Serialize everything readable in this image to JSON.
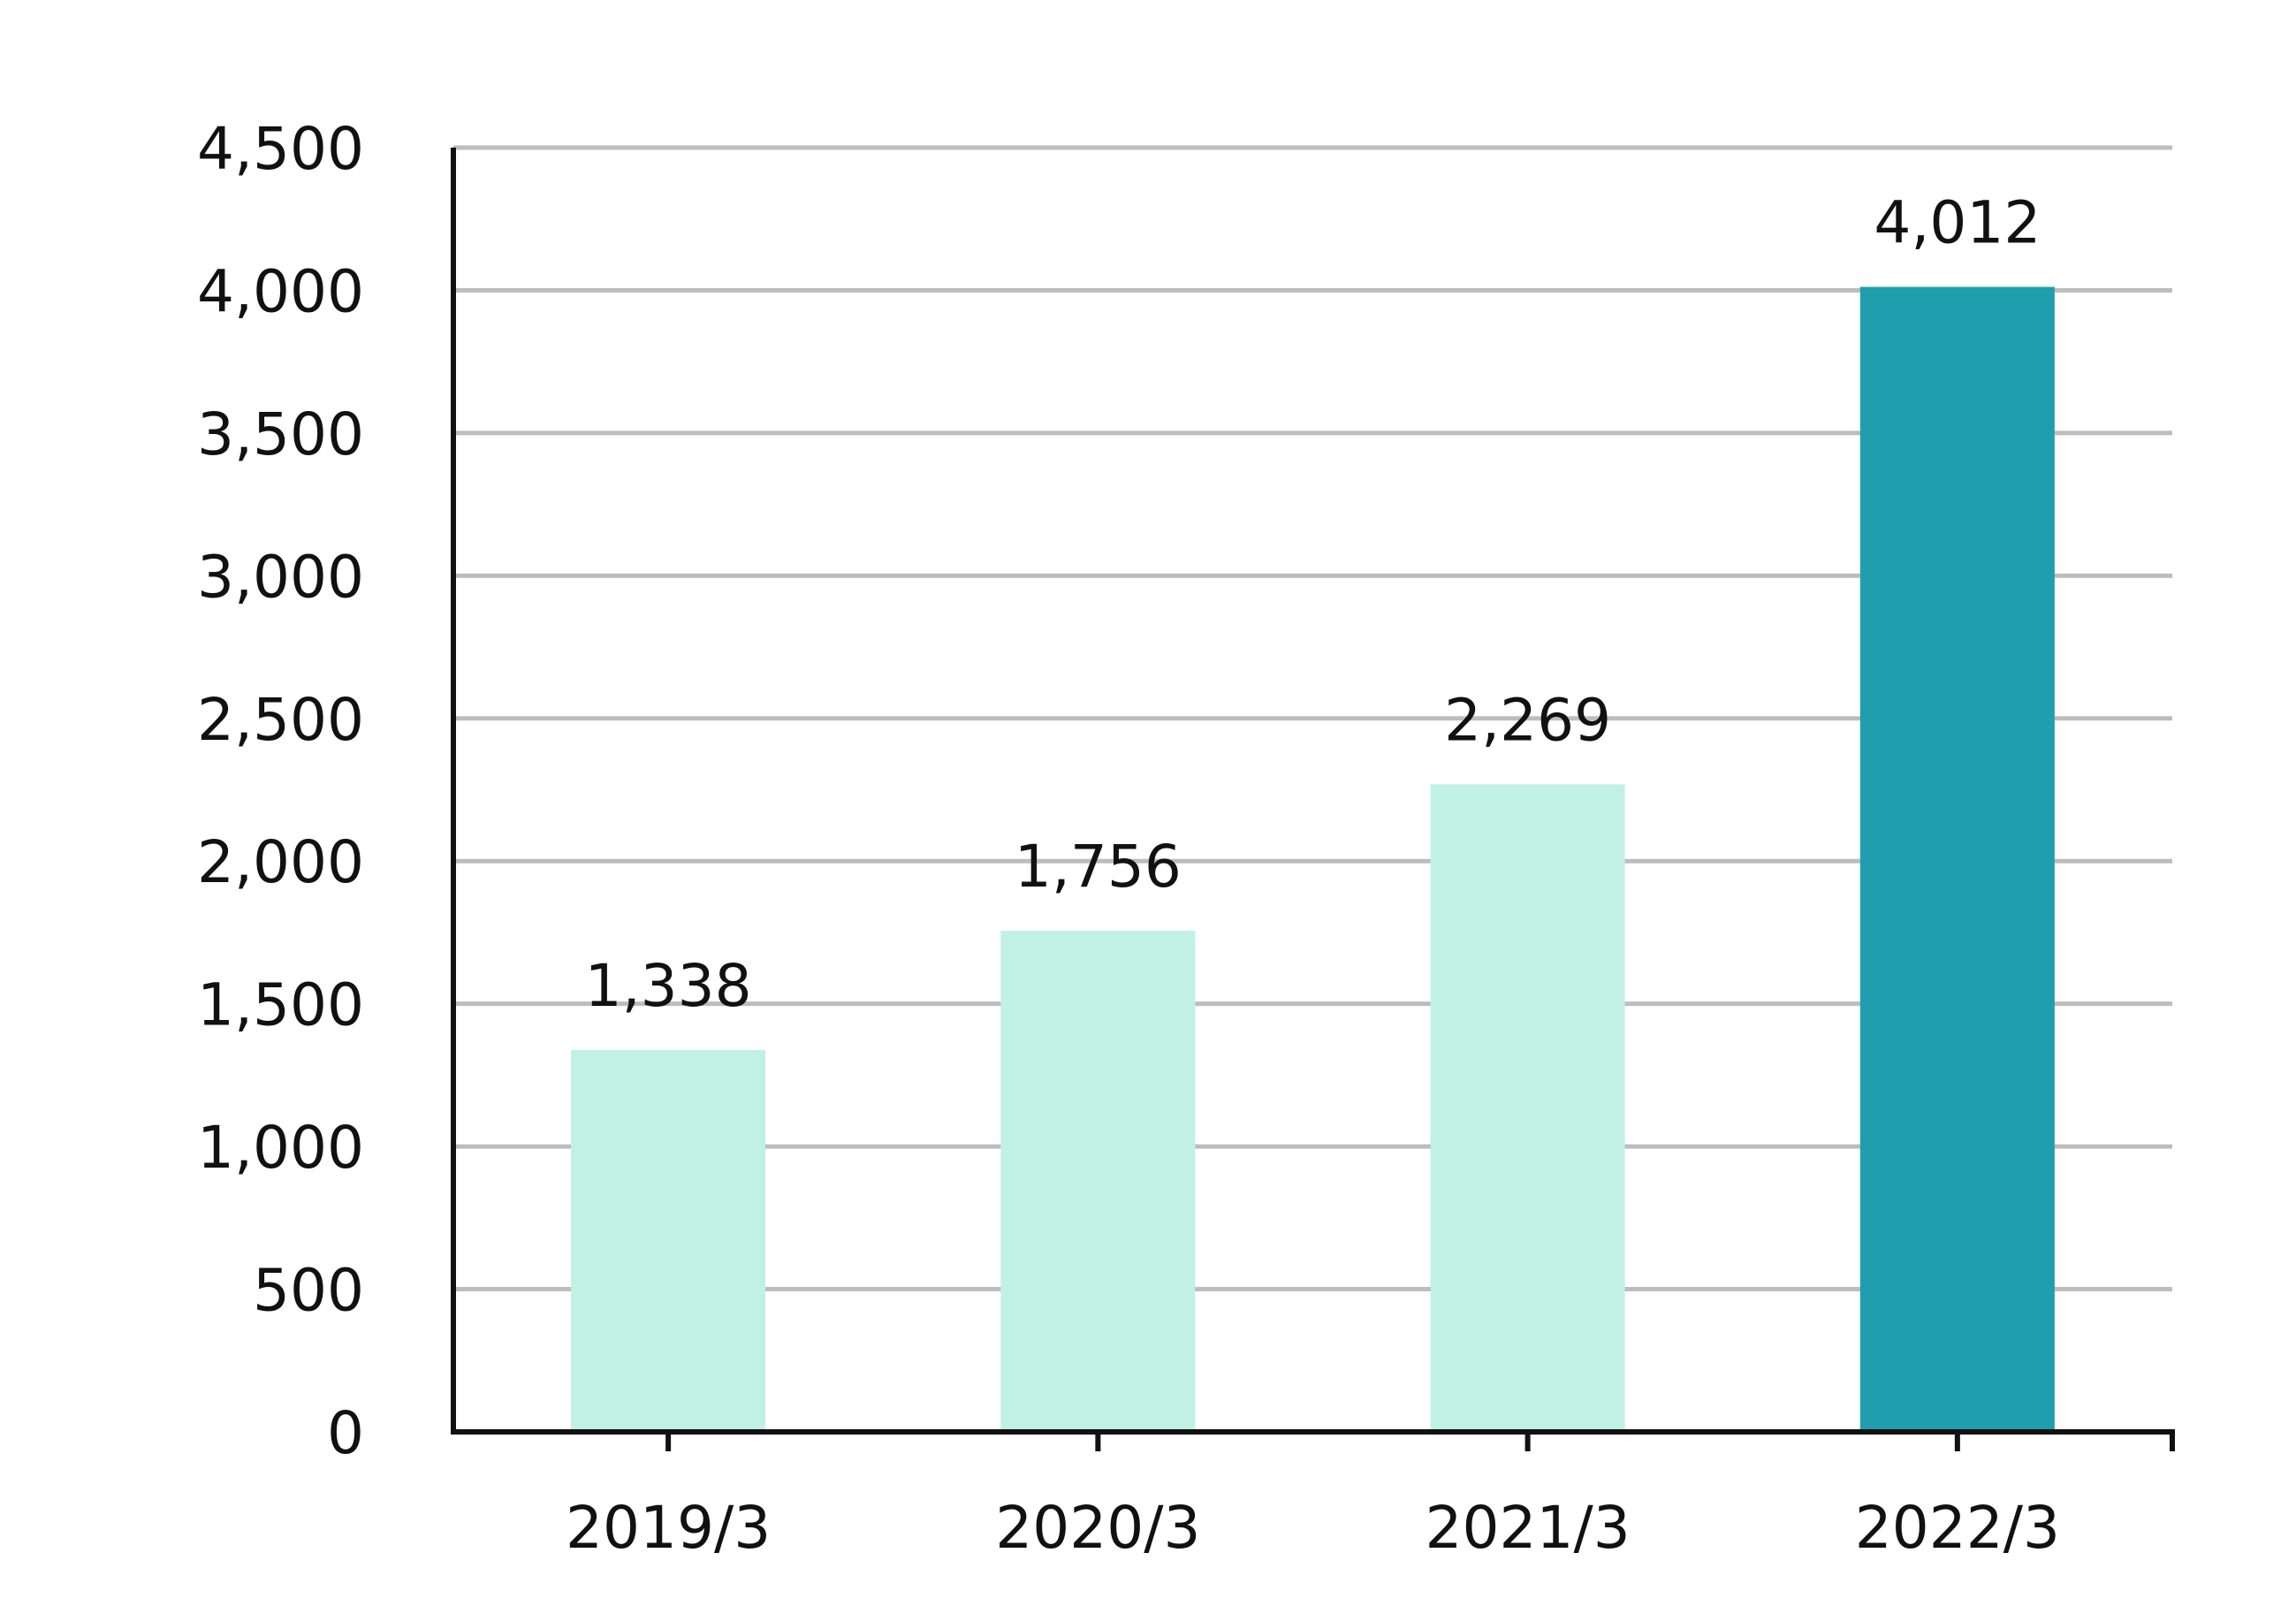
{
  "chart_data": {
    "type": "bar",
    "title": "",
    "xlabel": "",
    "ylabel": "",
    "categories": [
      "2019/3",
      "2020/3",
      "2021/3",
      "2022/3"
    ],
    "values": [
      1338,
      1756,
      2269,
      4012
    ],
    "data_labels": [
      "1,338",
      "1,756",
      "2,269",
      "4,012"
    ],
    "ylim": [
      0,
      4500
    ],
    "y_ticks": [
      0,
      500,
      1000,
      1500,
      2000,
      2500,
      3000,
      3500,
      4000,
      4500
    ],
    "y_tick_labels": [
      "0",
      "500",
      "1,000",
      "1,500",
      "2,000",
      "2,500",
      "3,000",
      "3,500",
      "4,000",
      "4,500"
    ],
    "grid": true,
    "legend": "none",
    "colors": {
      "bar_default": "#c0f1e4",
      "bar_highlight": "#1f9eae",
      "gridline": "#bdbdbd",
      "axis": "#111111"
    },
    "highlight_index": 3
  }
}
